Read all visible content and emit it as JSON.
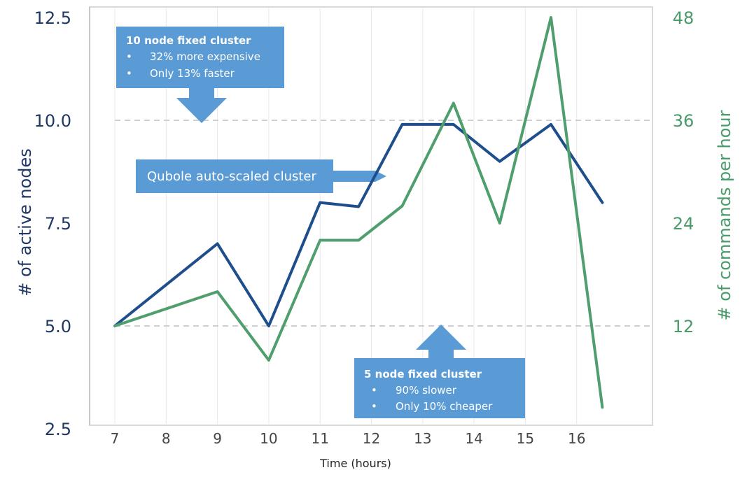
{
  "chart_data": {
    "type": "line",
    "xlabel": "Time (hours)",
    "x_categories": [
      "7",
      "8",
      "9",
      "10",
      "11",
      "12",
      "13",
      "14",
      "15",
      "16"
    ],
    "ylabel_left": "# of active nodes",
    "ylabel_right": "# of commands per hour",
    "yticks_left": [
      "2.5",
      "5.0",
      "7.5",
      "10.0",
      "12.5"
    ],
    "yticks_right": [
      "12",
      "24",
      "36",
      "48"
    ],
    "ylim_left": [
      2.5,
      12.5
    ],
    "ylim_right": [
      0,
      48
    ],
    "grid": "dashed horizontal lines at 5.0 and 10.0; vertical gridlines at each hour",
    "series": [
      {
        "axis": "left",
        "color": "#1f4e8c",
        "points": [
          [
            7.0,
            5.0
          ],
          [
            9.0,
            7.0
          ],
          [
            10.0,
            5.0
          ],
          [
            11.0,
            8.0
          ],
          [
            11.75,
            7.9
          ],
          [
            12.6,
            9.9
          ],
          [
            13.6,
            9.9
          ],
          [
            14.5,
            9.0
          ],
          [
            15.5,
            9.9
          ],
          [
            16.5,
            8.0
          ]
        ]
      },
      {
        "axis": "right",
        "color": "#4f9e6e",
        "points": [
          [
            7.0,
            12.0
          ],
          [
            9.0,
            16.0
          ],
          [
            10.0,
            8.0
          ],
          [
            11.0,
            22.0
          ],
          [
            11.75,
            22.0
          ],
          [
            12.6,
            26.0
          ],
          [
            13.6,
            38.0
          ],
          [
            14.5,
            24.0
          ],
          [
            15.5,
            48.0
          ],
          [
            16.5,
            2.5
          ]
        ]
      }
    ]
  },
  "callouts": {
    "ten_node": {
      "title": "10 node fixed cluster",
      "bullets": [
        "32% more expensive",
        "Only 13% faster"
      ]
    },
    "auto_scaled": {
      "label": "Qubole auto-scaled cluster"
    },
    "five_node": {
      "title": "5 node fixed cluster",
      "bullets": [
        "90% slower",
        "Only 10% cheaper"
      ]
    },
    "box_color": "#5b9bd5"
  }
}
